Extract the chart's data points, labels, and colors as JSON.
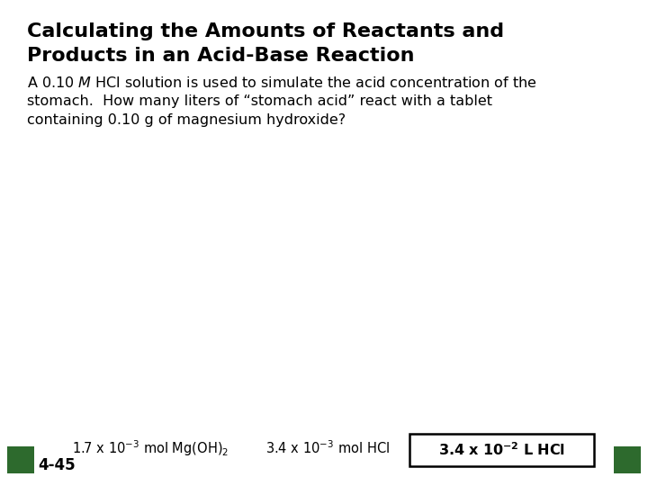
{
  "title_line1": "Calculating the Amounts of Reactants and",
  "title_line2": "Products in an Acid-Base Reaction",
  "body_line1": "A 0.10 $\\it{M}$ HCl solution is used to simulate the acid concentration of the",
  "body_line2": "stomach.  How many liters of “stomach acid” react with a tablet",
  "body_line3": "containing 0.10 g of magnesium hydroxide?",
  "bottom_label1": "1.7 x 10$^{-3}$ mol Mg(OH)$_2$",
  "bottom_label2": "3.4 x 10$^{-3}$ mol HCl",
  "box_label": "3.4 x 10$^{-2}$ L HCl",
  "page_label": "4-45",
  "background_color": "#ffffff",
  "title_color": "#000000",
  "body_color": "#000000",
  "box_color": "#000000",
  "square_color": "#2d6a2d",
  "font_size_title": 16,
  "font_size_body": 11.5,
  "font_size_bottom": 10.5
}
